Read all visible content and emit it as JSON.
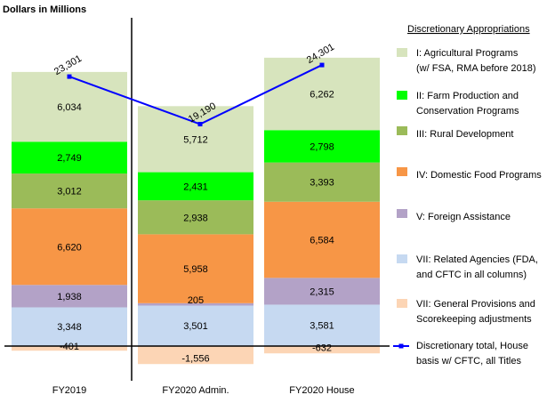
{
  "chart_data": {
    "type": "bar",
    "stacked": true,
    "ylabel": "Dollars in Millions",
    "categories": [
      "FY2019",
      "FY2020 Admin.",
      "FY2020 House"
    ],
    "ylim": [
      -2000,
      26000
    ],
    "legend_title": "Discretionary Appropriations",
    "legend_position": "right",
    "series": [
      {
        "name": "VII: Related Agencies (FDA, and CFTC in all columns)",
        "color": "#c6d9f1",
        "values": [
          3348,
          3501,
          3581
        ],
        "labels": [
          "3,348",
          "3,501",
          "3,581"
        ]
      },
      {
        "name": "V: Foreign Assistance",
        "color": "#b3a2c7",
        "values": [
          1938,
          205,
          2315
        ],
        "labels": [
          "1,938",
          "205",
          "2,315"
        ]
      },
      {
        "name": "IV: Domestic Food Programs",
        "color": "#f79646",
        "values": [
          6620,
          5958,
          6584
        ],
        "labels": [
          "6,620",
          "5,958",
          "6,584"
        ]
      },
      {
        "name": "III: Rural Development",
        "color": "#9bbb59",
        "values": [
          3012,
          2938,
          3393
        ],
        "labels": [
          "3,012",
          "2,938",
          "3,393"
        ]
      },
      {
        "name": "II: Farm Production and Conservation Programs",
        "color": "#00ff00",
        "values": [
          2749,
          2431,
          2798
        ],
        "labels": [
          "2,749",
          "2,431",
          "2,798"
        ]
      },
      {
        "name": "I: Agricultural Programs (w/ FSA, RMA before 2018)",
        "color": "#d7e4bd",
        "values": [
          6034,
          5712,
          6262
        ],
        "labels": [
          "6,034",
          "5,712",
          "6,262"
        ]
      }
    ],
    "negative_series": {
      "name": "VII: General Provisions and Scorekeeping adjustments",
      "color": "#fcd5b5",
      "values": [
        -401,
        -1556,
        -632
      ],
      "labels": [
        "-401",
        "-1,556",
        "-632"
      ]
    },
    "line_series": {
      "name": "Discretionary total, House basis w/ CFTC, all Titles",
      "color": "#0000ff",
      "values": [
        23301,
        19190,
        24301
      ],
      "labels": [
        "23,301",
        "19,190",
        "24,301"
      ]
    },
    "legend": [
      {
        "name": "I: Agricultural Programs (w/ FSA, RMA before 2018)",
        "lines": [
          "I: Agricultural Programs",
          "(w/ FSA, RMA before 2018)"
        ],
        "color": "#d7e4bd",
        "kind": "box"
      },
      {
        "name": "II: Farm Production and Conservation Programs",
        "lines": [
          "II: Farm Production and",
          "Conservation Programs"
        ],
        "color": "#00ff00",
        "kind": "box"
      },
      {
        "name": "III: Rural Development",
        "lines": [
          "III: Rural Development"
        ],
        "color": "#9bbb59",
        "kind": "box"
      },
      {
        "name": "IV: Domestic Food Programs",
        "lines": [
          "IV: Domestic Food Programs"
        ],
        "color": "#f79646",
        "kind": "box"
      },
      {
        "name": "V: Foreign Assistance",
        "lines": [
          "V: Foreign Assistance"
        ],
        "color": "#b3a2c7",
        "kind": "box"
      },
      {
        "name": "VII: Related Agencies (FDA, and CFTC in all columns)",
        "lines": [
          "VII: Related Agencies (FDA,",
          "and CFTC in all columns)"
        ],
        "color": "#c6d9f1",
        "kind": "box"
      },
      {
        "name": "VII: General Provisions and Scorekeeping adjustments",
        "lines": [
          "VII: General Provisions and",
          "Scorekeeping adjustments"
        ],
        "color": "#fcd5b5",
        "kind": "box"
      },
      {
        "name": "Discretionary total, House basis w/ CFTC, all Titles",
        "lines": [
          "Discretionary total, House",
          "basis w/ CFTC, all Titles"
        ],
        "color": "#0000ff",
        "kind": "line"
      }
    ]
  }
}
